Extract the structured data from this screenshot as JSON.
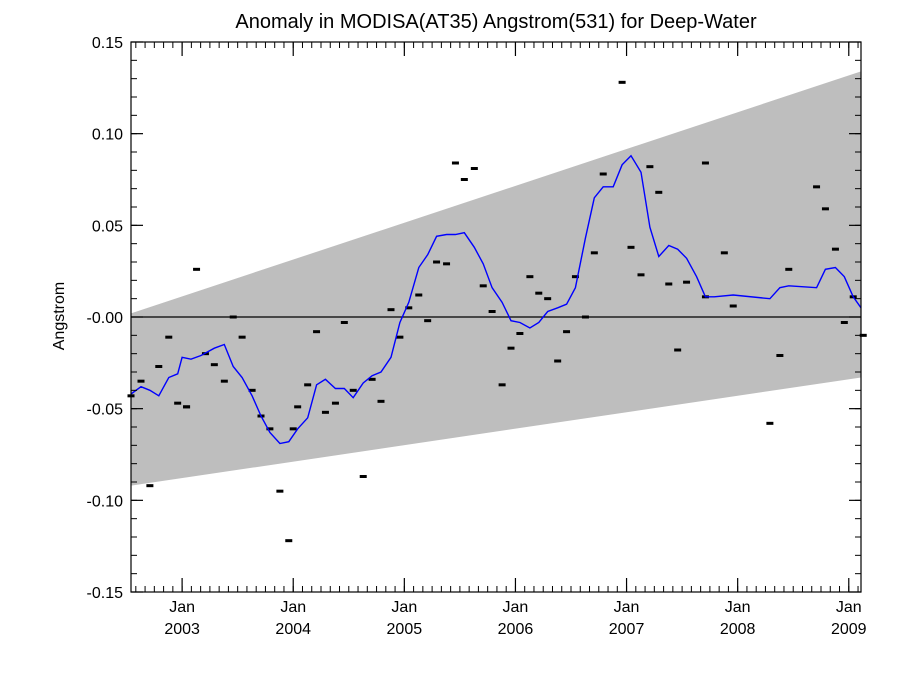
{
  "chart_data": {
    "type": "line",
    "title": "Anomaly in MODISA(AT35) Angstrom(531) for Deep-Water",
    "xlabel": "",
    "ylabel": "Angstrom",
    "xlim": [
      2002.54,
      2009.11
    ],
    "ylim": [
      -0.15,
      0.15
    ],
    "y_ticks": [
      "0.15",
      "0.10",
      "0.05",
      "-0.00",
      "-0.05",
      "-0.10",
      "-0.15"
    ],
    "x_tick_labels": [
      {
        "x": 2003.0,
        "month": "Jan",
        "year": "2003"
      },
      {
        "x": 2004.0,
        "month": "Jan",
        "year": "2004"
      },
      {
        "x": 2005.0,
        "month": "Jan",
        "year": "2005"
      },
      {
        "x": 2006.0,
        "month": "Jan",
        "year": "2006"
      },
      {
        "x": 2007.0,
        "month": "Jan",
        "year": "2007"
      },
      {
        "x": 2008.0,
        "month": "Jan",
        "year": "2008"
      },
      {
        "x": 2009.0,
        "month": "Jan",
        "year": "2009"
      }
    ],
    "zero_line": 0.0,
    "confidence_band": {
      "x": [
        2002.54,
        2009.11
      ],
      "upper": [
        0.002,
        0.134
      ],
      "lower": [
        -0.092,
        -0.033
      ],
      "color": "#bebebe"
    },
    "series": [
      {
        "style": "markers",
        "color": "#000000",
        "points": [
          [
            2002.54,
            -0.043
          ],
          [
            2002.63,
            -0.035
          ],
          [
            2002.71,
            -0.092
          ],
          [
            2002.79,
            -0.027
          ],
          [
            2002.88,
            -0.011
          ],
          [
            2002.96,
            -0.047
          ],
          [
            2003.04,
            -0.049
          ],
          [
            2003.04,
            -0.049
          ],
          [
            2003.13,
            0.026
          ],
          [
            2003.21,
            -0.02
          ],
          [
            2003.29,
            -0.026
          ],
          [
            2003.38,
            -0.035
          ],
          [
            2003.46,
            0.0
          ],
          [
            2003.54,
            -0.011
          ],
          [
            2003.63,
            -0.04
          ],
          [
            2003.71,
            -0.054
          ],
          [
            2003.79,
            -0.061
          ],
          [
            2003.88,
            -0.095
          ],
          [
            2003.96,
            -0.122
          ],
          [
            2004.0,
            -0.061
          ],
          [
            2004.04,
            -0.049
          ],
          [
            2004.13,
            -0.037
          ],
          [
            2004.21,
            -0.008
          ],
          [
            2004.29,
            -0.052
          ],
          [
            2004.38,
            -0.047
          ],
          [
            2004.46,
            -0.003
          ],
          [
            2004.54,
            -0.04
          ],
          [
            2004.63,
            -0.087
          ],
          [
            2004.71,
            -0.034
          ],
          [
            2004.79,
            -0.046
          ],
          [
            2004.88,
            0.004
          ],
          [
            2004.96,
            -0.011
          ],
          [
            2005.04,
            0.005
          ],
          [
            2005.13,
            0.012
          ],
          [
            2005.21,
            -0.002
          ],
          [
            2005.29,
            0.03
          ],
          [
            2005.38,
            0.029
          ],
          [
            2005.46,
            0.084
          ],
          [
            2005.54,
            0.075
          ],
          [
            2005.63,
            0.081
          ],
          [
            2005.71,
            0.017
          ],
          [
            2005.79,
            0.003
          ],
          [
            2005.88,
            -0.037
          ],
          [
            2005.96,
            -0.017
          ],
          [
            2006.04,
            -0.009
          ],
          [
            2006.13,
            0.022
          ],
          [
            2006.21,
            0.013
          ],
          [
            2006.29,
            0.01
          ],
          [
            2006.38,
            -0.024
          ],
          [
            2006.46,
            -0.008
          ],
          [
            2006.54,
            0.022
          ],
          [
            2006.63,
            0.0
          ],
          [
            2006.71,
            0.035
          ],
          [
            2006.79,
            0.078
          ],
          [
            2006.96,
            0.128
          ],
          [
            2007.04,
            0.038
          ],
          [
            2007.13,
            0.023
          ],
          [
            2007.21,
            0.082
          ],
          [
            2007.29,
            0.068
          ],
          [
            2007.38,
            0.018
          ],
          [
            2007.46,
            -0.018
          ],
          [
            2007.54,
            0.019
          ],
          [
            2007.71,
            0.084
          ],
          [
            2007.71,
            0.011
          ],
          [
            2007.88,
            0.035
          ],
          [
            2007.96,
            0.006
          ],
          [
            2008.29,
            -0.058
          ],
          [
            2008.38,
            -0.021
          ],
          [
            2008.46,
            0.026
          ],
          [
            2008.71,
            0.071
          ],
          [
            2008.79,
            0.059
          ],
          [
            2008.88,
            0.037
          ],
          [
            2008.96,
            -0.003
          ],
          [
            2009.04,
            0.011
          ],
          [
            2009.13,
            -0.01
          ]
        ]
      },
      {
        "style": "line",
        "color": "#0000ff",
        "points": [
          [
            2002.54,
            -0.042
          ],
          [
            2002.63,
            -0.038
          ],
          [
            2002.71,
            -0.04
          ],
          [
            2002.79,
            -0.043
          ],
          [
            2002.88,
            -0.033
          ],
          [
            2002.96,
            -0.031
          ],
          [
            2003.0,
            -0.022
          ],
          [
            2003.08,
            -0.023
          ],
          [
            2003.17,
            -0.021
          ],
          [
            2003.29,
            -0.017
          ],
          [
            2003.38,
            -0.015
          ],
          [
            2003.46,
            -0.027
          ],
          [
            2003.54,
            -0.033
          ],
          [
            2003.63,
            -0.043
          ],
          [
            2003.71,
            -0.054
          ],
          [
            2003.79,
            -0.063
          ],
          [
            2003.88,
            -0.069
          ],
          [
            2003.96,
            -0.068
          ],
          [
            2004.04,
            -0.061
          ],
          [
            2004.13,
            -0.055
          ],
          [
            2004.21,
            -0.037
          ],
          [
            2004.29,
            -0.034
          ],
          [
            2004.38,
            -0.039
          ],
          [
            2004.46,
            -0.039
          ],
          [
            2004.54,
            -0.044
          ],
          [
            2004.63,
            -0.036
          ],
          [
            2004.71,
            -0.032
          ],
          [
            2004.79,
            -0.03
          ],
          [
            2004.88,
            -0.022
          ],
          [
            2004.96,
            -0.003
          ],
          [
            2005.04,
            0.008
          ],
          [
            2005.13,
            0.027
          ],
          [
            2005.21,
            0.034
          ],
          [
            2005.29,
            0.044
          ],
          [
            2005.38,
            0.045
          ],
          [
            2005.46,
            0.045
          ],
          [
            2005.54,
            0.046
          ],
          [
            2005.63,
            0.038
          ],
          [
            2005.71,
            0.029
          ],
          [
            2005.79,
            0.016
          ],
          [
            2005.88,
            0.008
          ],
          [
            2005.96,
            -0.002
          ],
          [
            2006.04,
            -0.003
          ],
          [
            2006.13,
            -0.006
          ],
          [
            2006.21,
            -0.003
          ],
          [
            2006.29,
            0.003
          ],
          [
            2006.38,
            0.005
          ],
          [
            2006.46,
            0.007
          ],
          [
            2006.54,
            0.016
          ],
          [
            2006.63,
            0.043
          ],
          [
            2006.71,
            0.065
          ],
          [
            2006.79,
            0.071
          ],
          [
            2006.88,
            0.071
          ],
          [
            2006.96,
            0.083
          ],
          [
            2007.04,
            0.088
          ],
          [
            2007.13,
            0.079
          ],
          [
            2007.21,
            0.049
          ],
          [
            2007.29,
            0.033
          ],
          [
            2007.38,
            0.039
          ],
          [
            2007.46,
            0.037
          ],
          [
            2007.54,
            0.032
          ],
          [
            2007.63,
            0.022
          ],
          [
            2007.71,
            0.011
          ],
          [
            2007.79,
            0.011
          ],
          [
            2007.96,
            0.012
          ],
          [
            2008.29,
            0.01
          ],
          [
            2008.38,
            0.016
          ],
          [
            2008.46,
            0.017
          ],
          [
            2008.71,
            0.016
          ],
          [
            2008.79,
            0.026
          ],
          [
            2008.88,
            0.027
          ],
          [
            2008.96,
            0.022
          ],
          [
            2009.04,
            0.011
          ],
          [
            2009.11,
            0.005
          ]
        ]
      }
    ],
    "grid": false
  }
}
